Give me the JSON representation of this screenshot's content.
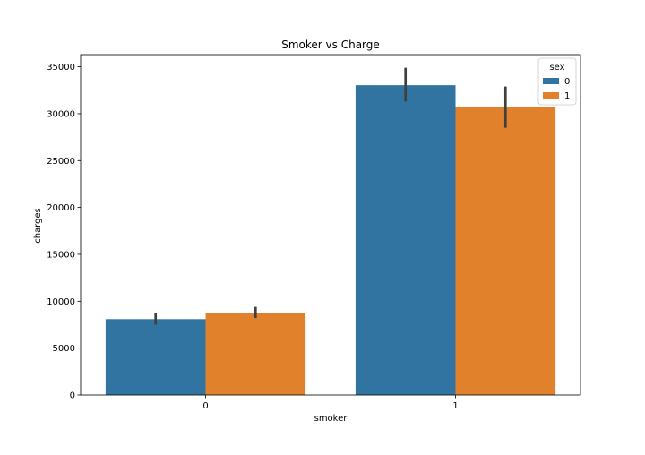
{
  "chart_data": {
    "type": "bar",
    "title": "Smoker vs Charge",
    "xlabel": "smoker",
    "ylabel": "charges",
    "categories": [
      "0",
      "1"
    ],
    "ylim": [
      0,
      36300
    ],
    "yticks": [
      0,
      5000,
      10000,
      15000,
      20000,
      25000,
      30000,
      35000
    ],
    "grid": false,
    "legend": {
      "title": "sex",
      "position": "top-right"
    },
    "series": [
      {
        "name": "0",
        "color": "#3274a1",
        "values": [
          8090,
          33040
        ],
        "ci_low": [
          7500,
          31300
        ],
        "ci_high": [
          8700,
          34900
        ]
      },
      {
        "name": "1",
        "color": "#e1812c",
        "values": [
          8760,
          30680
        ],
        "ci_low": [
          8200,
          28500
        ],
        "ci_high": [
          9400,
          32900
        ]
      }
    ],
    "errorbar_color": "#3f3f3f"
  }
}
